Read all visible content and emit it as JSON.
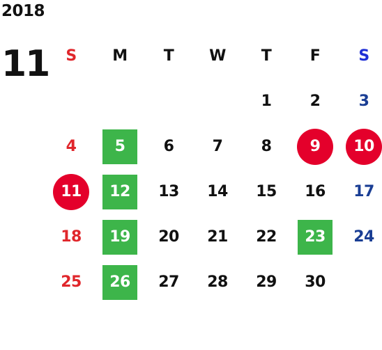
{
  "calendar": {
    "year": "2018",
    "month": "11",
    "weekday_headers": [
      "S",
      "M",
      "T",
      "W",
      "T",
      "F",
      "S"
    ],
    "weeks": [
      [
        {
          "day": "",
          "style": "plain"
        },
        {
          "day": "",
          "style": "plain"
        },
        {
          "day": "",
          "style": "plain"
        },
        {
          "day": "",
          "style": "plain"
        },
        {
          "day": "1",
          "style": "plain"
        },
        {
          "day": "2",
          "style": "plain"
        },
        {
          "day": "3",
          "style": "plain"
        }
      ],
      [
        {
          "day": "4",
          "style": "plain"
        },
        {
          "day": "5",
          "style": "green-square"
        },
        {
          "day": "6",
          "style": "plain"
        },
        {
          "day": "7",
          "style": "plain"
        },
        {
          "day": "8",
          "style": "plain"
        },
        {
          "day": "9",
          "style": "red-circle"
        },
        {
          "day": "10",
          "style": "red-circle"
        }
      ],
      [
        {
          "day": "11",
          "style": "red-circle"
        },
        {
          "day": "12",
          "style": "green-square"
        },
        {
          "day": "13",
          "style": "plain"
        },
        {
          "day": "14",
          "style": "plain"
        },
        {
          "day": "15",
          "style": "plain"
        },
        {
          "day": "16",
          "style": "plain"
        },
        {
          "day": "17",
          "style": "plain"
        }
      ],
      [
        {
          "day": "18",
          "style": "plain"
        },
        {
          "day": "19",
          "style": "green-square"
        },
        {
          "day": "20",
          "style": "plain"
        },
        {
          "day": "21",
          "style": "plain"
        },
        {
          "day": "22",
          "style": "plain"
        },
        {
          "day": "23",
          "style": "green-square"
        },
        {
          "day": "24",
          "style": "plain"
        }
      ],
      [
        {
          "day": "25",
          "style": "plain"
        },
        {
          "day": "26",
          "style": "green-square"
        },
        {
          "day": "27",
          "style": "plain"
        },
        {
          "day": "28",
          "style": "plain"
        },
        {
          "day": "29",
          "style": "plain"
        },
        {
          "day": "30",
          "style": "plain"
        },
        {
          "day": "",
          "style": "plain"
        }
      ]
    ],
    "colors": {
      "sunday_text": "#e0262b",
      "saturday_text": "#1a3e94",
      "saturday_header": "#1f2fd6",
      "green_marker": "#3db54a",
      "red_marker": "#e4002b"
    }
  }
}
